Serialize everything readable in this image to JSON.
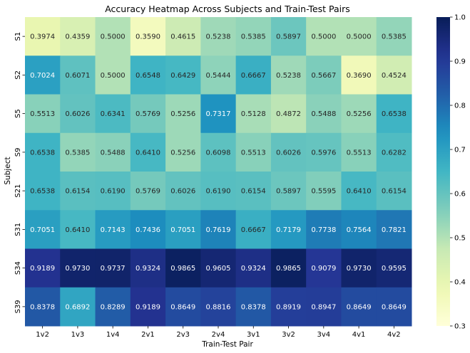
{
  "chart_data": {
    "type": "heatmap",
    "title": "Accuracy Heatmap Across Subjects and Train-Test Pairs",
    "xlabel": "Train-Test Pair",
    "ylabel": "Subject",
    "x_categories": [
      "1v2",
      "1v3",
      "1v4",
      "2v1",
      "2v3",
      "2v4",
      "3v1",
      "3v2",
      "3v4",
      "4v1",
      "4v2"
    ],
    "y_categories": [
      "S1",
      "S2",
      "S5",
      "S9",
      "S21",
      "S31",
      "S34",
      "S39"
    ],
    "values": [
      [
        0.3974,
        0.4359,
        0.5,
        0.359,
        0.4615,
        0.5238,
        0.5385,
        0.5897,
        0.5,
        0.5,
        0.5385
      ],
      [
        0.7024,
        0.6071,
        0.5,
        0.6548,
        0.6429,
        0.5444,
        0.6667,
        0.5238,
        0.5667,
        0.369,
        0.4524
      ],
      [
        0.5513,
        0.6026,
        0.6341,
        0.5769,
        0.5256,
        0.7317,
        0.5128,
        0.4872,
        0.5488,
        0.5256,
        0.6538
      ],
      [
        0.6538,
        0.5385,
        0.5488,
        0.641,
        0.5256,
        0.6098,
        0.5513,
        0.6026,
        0.5976,
        0.5513,
        0.6282
      ],
      [
        0.6538,
        0.6154,
        0.619,
        0.5769,
        0.6026,
        0.619,
        0.6154,
        0.5897,
        0.5595,
        0.641,
        0.6154
      ],
      [
        0.7051,
        0.641,
        0.7143,
        0.7436,
        0.7051,
        0.7619,
        0.6667,
        0.7179,
        0.7738,
        0.7564,
        0.7821
      ],
      [
        0.9189,
        0.973,
        0.9737,
        0.9324,
        0.9865,
        0.9605,
        0.9324,
        0.9865,
        0.9079,
        0.973,
        0.9595
      ],
      [
        0.8378,
        0.6892,
        0.8289,
        0.9189,
        0.8649,
        0.8816,
        0.8378,
        0.8919,
        0.8947,
        0.8649,
        0.8649
      ]
    ],
    "colorscale": "YlGnBu",
    "colorbar": {
      "range": [
        0.3,
        1.0
      ],
      "ticks": [
        "0.3",
        "0.4",
        "0.5",
        "0.6",
        "0.7",
        "0.8",
        "0.9",
        "1.0"
      ]
    },
    "grid": false,
    "legend": "none"
  }
}
